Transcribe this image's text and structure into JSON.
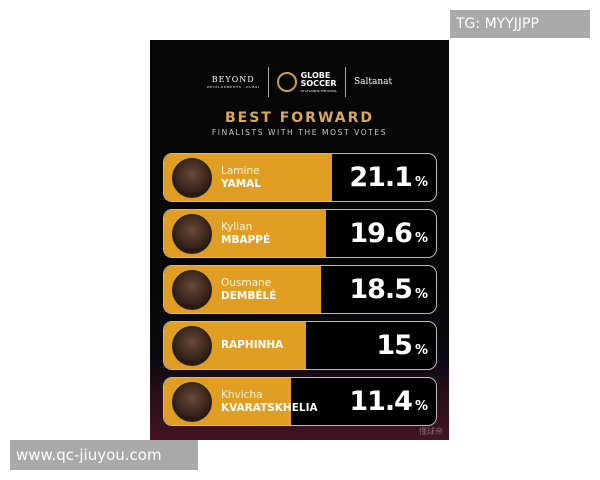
{
  "sponsors": {
    "left": {
      "name": "BEYOND",
      "sub": "DEVELOPMENTS · DUBAI"
    },
    "center": {
      "name_line1": "GLOBE",
      "name_line2": "SOCCER",
      "sub": "AT ATLANTIS THE ROYAL"
    },
    "right": {
      "name": "Saltanat"
    }
  },
  "chart_data": {
    "type": "bar",
    "title": "BEST FORWARD",
    "subtitle": "FINALISTS WITH THE MOST VOTES",
    "unit": "%",
    "bar_color": "#e09f22",
    "categories": [
      {
        "first": "Lamine",
        "last": "YAMAL"
      },
      {
        "first": "Kylian",
        "last": "MBAPPÉ"
      },
      {
        "first": "Ousmane",
        "last": "DEMBÉLÉ"
      },
      {
        "first": "",
        "last": "RAPHINHA"
      },
      {
        "first": "Khvicha",
        "last": "KVARATSKHELIA"
      }
    ],
    "values": [
      21.1,
      19.6,
      18.5,
      15,
      11.4
    ],
    "value_labels": [
      "21.1",
      "19.6",
      "18.5",
      "15",
      "11.4"
    ]
  },
  "watermarks": {
    "card": "懂球帝",
    "top_right": "TG: MYYJJPP",
    "bottom_left": "www.qc-jiuyou.com"
  }
}
